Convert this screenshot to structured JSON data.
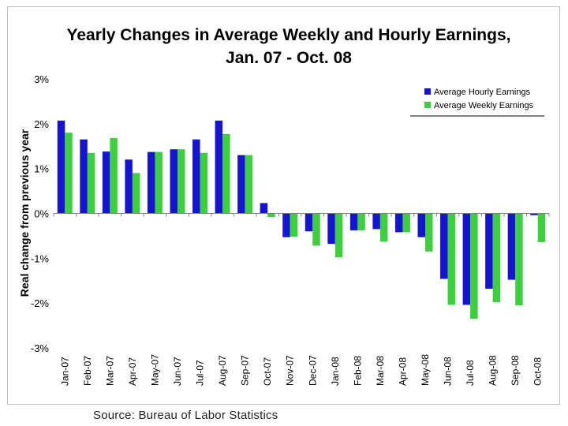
{
  "source": "Source: Bureau of Labor Statistics",
  "colors": {
    "hourly": "#1414d2",
    "weekly": "#3ecf3e",
    "axis": "#7f7f7f",
    "text": "#000000"
  },
  "chart_data": {
    "type": "bar",
    "title": "Yearly Changes in Average Weekly and Hourly Earnings,",
    "subtitle": "Jan. 07 - Oct. 08",
    "ylabel": "Real change from previous year",
    "xlabel": "",
    "ylim": [
      -3,
      3
    ],
    "yticks": [
      3,
      2,
      1,
      0,
      -1,
      -2,
      -3
    ],
    "ytick_labels": [
      "3%",
      "2%",
      "1%",
      "0%",
      "-1%",
      "-2%",
      "-3%"
    ],
    "legend_position": "top-right",
    "categories": [
      "Jan-07",
      "Feb-07",
      "Mar-07",
      "Apr-07",
      "May-07",
      "Jun-07",
      "Jul-07",
      "Aug-07",
      "Sep-07",
      "Oct-07",
      "Nov-07",
      "Dec-07",
      "Jan-08",
      "Feb-08",
      "Mar-08",
      "Apr-08",
      "May-08",
      "Jun-08",
      "Jul-08",
      "Aug-08",
      "Sep-08",
      "Oct-08"
    ],
    "series": [
      {
        "name": "Average Hourly Earnings",
        "values": [
          2.07,
          1.65,
          1.38,
          1.2,
          1.37,
          1.43,
          1.65,
          2.07,
          1.3,
          0.23,
          -0.53,
          -0.4,
          -0.68,
          -0.38,
          -0.35,
          -0.42,
          -0.53,
          -1.46,
          -2.04,
          -1.68,
          -1.48,
          -0.04
        ]
      },
      {
        "name": "Average Weekly Earnings",
        "values": [
          1.8,
          1.35,
          1.68,
          0.9,
          1.37,
          1.43,
          1.35,
          1.77,
          1.3,
          -0.08,
          -0.52,
          -0.72,
          -0.98,
          -0.38,
          -0.63,
          -0.42,
          -0.85,
          -2.04,
          -2.35,
          -1.98,
          -2.05,
          -0.64
        ]
      }
    ]
  }
}
